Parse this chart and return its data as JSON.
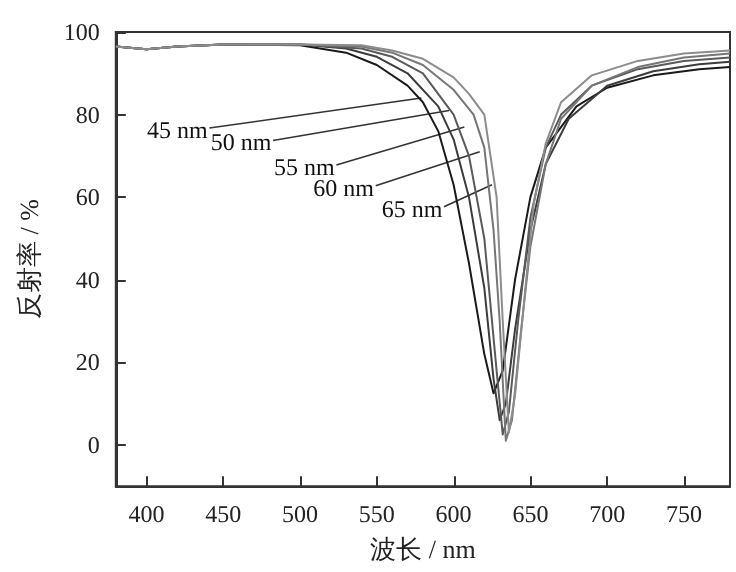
{
  "chart_data": {
    "type": "line",
    "xlabel": "波长 / nm",
    "ylabel": "反射率 / %",
    "xlim": [
      380,
      780
    ],
    "ylim": [
      -10,
      100
    ],
    "xticks": [
      400,
      450,
      500,
      550,
      600,
      650,
      700,
      750
    ],
    "yticks": [
      0,
      20,
      40,
      60,
      80,
      100
    ],
    "marker": "none",
    "line_style": "solid",
    "series": [
      {
        "color": "#1a1a1a",
        "x": [
          380,
          400,
          420,
          450,
          500,
          530,
          550,
          570,
          580,
          590,
          600,
          610,
          620,
          626,
          632,
          640,
          650,
          660,
          680,
          700,
          730,
          760,
          780
        ],
        "values": [
          96.5,
          95.8,
          96.5,
          97,
          96.8,
          95,
          92,
          87,
          83,
          76,
          63,
          44,
          22,
          12.5,
          18,
          40,
          60,
          72,
          82,
          86.5,
          89.5,
          91,
          91.5
        ]
      },
      {
        "color": "#3c3c3c",
        "x": [
          380,
          400,
          420,
          450,
          500,
          530,
          550,
          570,
          590,
          600,
          610,
          620,
          626,
          630,
          634,
          640,
          650,
          660,
          675,
          700,
          730,
          760,
          780
        ],
        "values": [
          96.5,
          95.8,
          96.5,
          97,
          97,
          96,
          94,
          90,
          82,
          74,
          60,
          38,
          16,
          6,
          10,
          28,
          52,
          68,
          79,
          87,
          90.5,
          92.2,
          92.8
        ]
      },
      {
        "color": "#5a5a5a",
        "x": [
          380,
          400,
          420,
          450,
          500,
          540,
          560,
          580,
          600,
          610,
          620,
          628,
          632,
          636,
          642,
          650,
          660,
          670,
          690,
          720,
          750,
          780
        ],
        "values": [
          96.5,
          95.8,
          96.5,
          97,
          97,
          96,
          94,
          90,
          80,
          70,
          50,
          18,
          2.5,
          8,
          30,
          55,
          72,
          80,
          87,
          91,
          93,
          93.8
        ]
      },
      {
        "color": "#767676",
        "x": [
          380,
          400,
          420,
          450,
          500,
          540,
          560,
          580,
          600,
          613,
          620,
          626,
          630,
          634,
          638,
          644,
          650,
          660,
          670,
          690,
          720,
          750,
          780
        ],
        "values": [
          96.5,
          95.8,
          96.5,
          97,
          97,
          96.5,
          95,
          92,
          86,
          80,
          72,
          52,
          30,
          1,
          6,
          28,
          48,
          68,
          79,
          87,
          91.5,
          93.8,
          94.8
        ]
      },
      {
        "color": "#8c8c8c",
        "x": [
          380,
          400,
          420,
          450,
          500,
          540,
          560,
          580,
          600,
          610,
          620,
          628,
          632,
          636,
          640,
          646,
          652,
          660,
          670,
          690,
          720,
          750,
          780
        ],
        "values": [
          96.5,
          95.8,
          96.5,
          97,
          97,
          96.8,
          95.5,
          93.5,
          89,
          85,
          80,
          60,
          30,
          3,
          12,
          35,
          58,
          73,
          83,
          89.5,
          93,
          94.8,
          95.5
        ]
      }
    ],
    "annotations": [
      {
        "text": "45 nm",
        "x": 579,
        "y": 84
      },
      {
        "text": "50 nm",
        "x": 597,
        "y": 81
      },
      {
        "text": "55 nm",
        "x": 607,
        "y": 77
      },
      {
        "text": "60 nm",
        "x": 617,
        "y": 71
      },
      {
        "text": "65 nm",
        "x": 625,
        "y": 63
      }
    ]
  }
}
